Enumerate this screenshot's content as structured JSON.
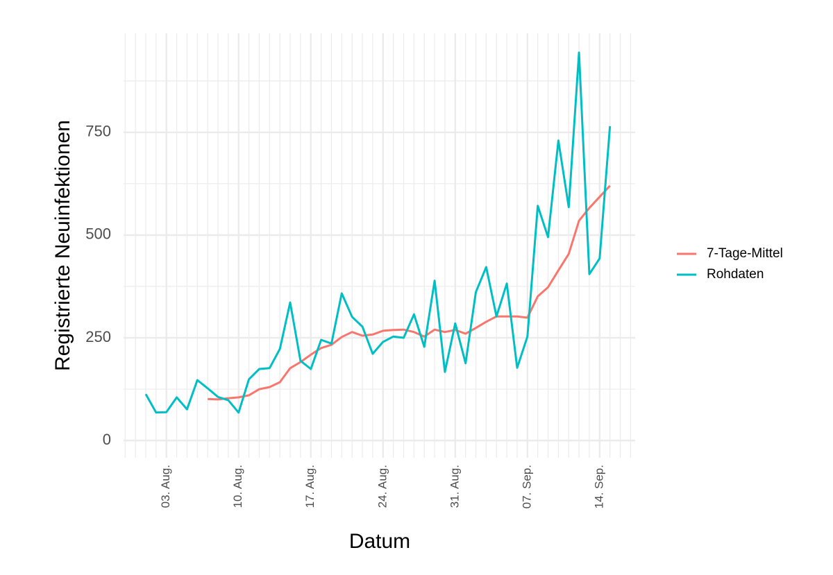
{
  "chart_data": {
    "type": "line",
    "x_label": "Datum",
    "y_label": "Registrierte Neuinfektionen",
    "categories": [
      null,
      null,
      "03. Aug.",
      null,
      null,
      null,
      null,
      null,
      null,
      "10. Aug.",
      null,
      null,
      null,
      null,
      null,
      null,
      "17. Aug.",
      null,
      null,
      null,
      null,
      null,
      null,
      "24. Aug.",
      null,
      null,
      null,
      null,
      null,
      null,
      "31. Aug.",
      null,
      null,
      null,
      null,
      null,
      null,
      "07. Sep.",
      null,
      null,
      null,
      null,
      null,
      null,
      "14. Sep.",
      null
    ],
    "series": [
      {
        "name": "7-Tage-Mittel",
        "color": "#F8766D",
        "values": [
          null,
          null,
          null,
          null,
          null,
          null,
          101,
          100,
          103,
          105,
          110,
          125,
          130,
          142,
          176,
          191,
          209,
          225,
          233,
          252,
          264,
          255,
          258,
          267,
          269,
          270,
          264,
          253,
          270,
          264,
          269,
          260,
          274,
          289,
          302,
          302,
          302,
          299,
          351,
          373,
          414,
          454,
          535,
          566,
          593,
          620
        ]
      },
      {
        "name": "Rohdaten",
        "color": "#00BFC4",
        "values": [
          113,
          68,
          69,
          105,
          76,
          147,
          127,
          106,
          98,
          68,
          149,
          174,
          176,
          223,
          336,
          194,
          174,
          245,
          236,
          358,
          301,
          277,
          211,
          240,
          253,
          250,
          307,
          228,
          389,
          167,
          285,
          188,
          361,
          422,
          302,
          382,
          177,
          253,
          571,
          495,
          730,
          568,
          944,
          405,
          443,
          765
        ]
      }
    ],
    "ylim": [
      -42,
      991
    ],
    "yticks": [
      0,
      250,
      500,
      750
    ],
    "grid": true,
    "legend": "right"
  }
}
